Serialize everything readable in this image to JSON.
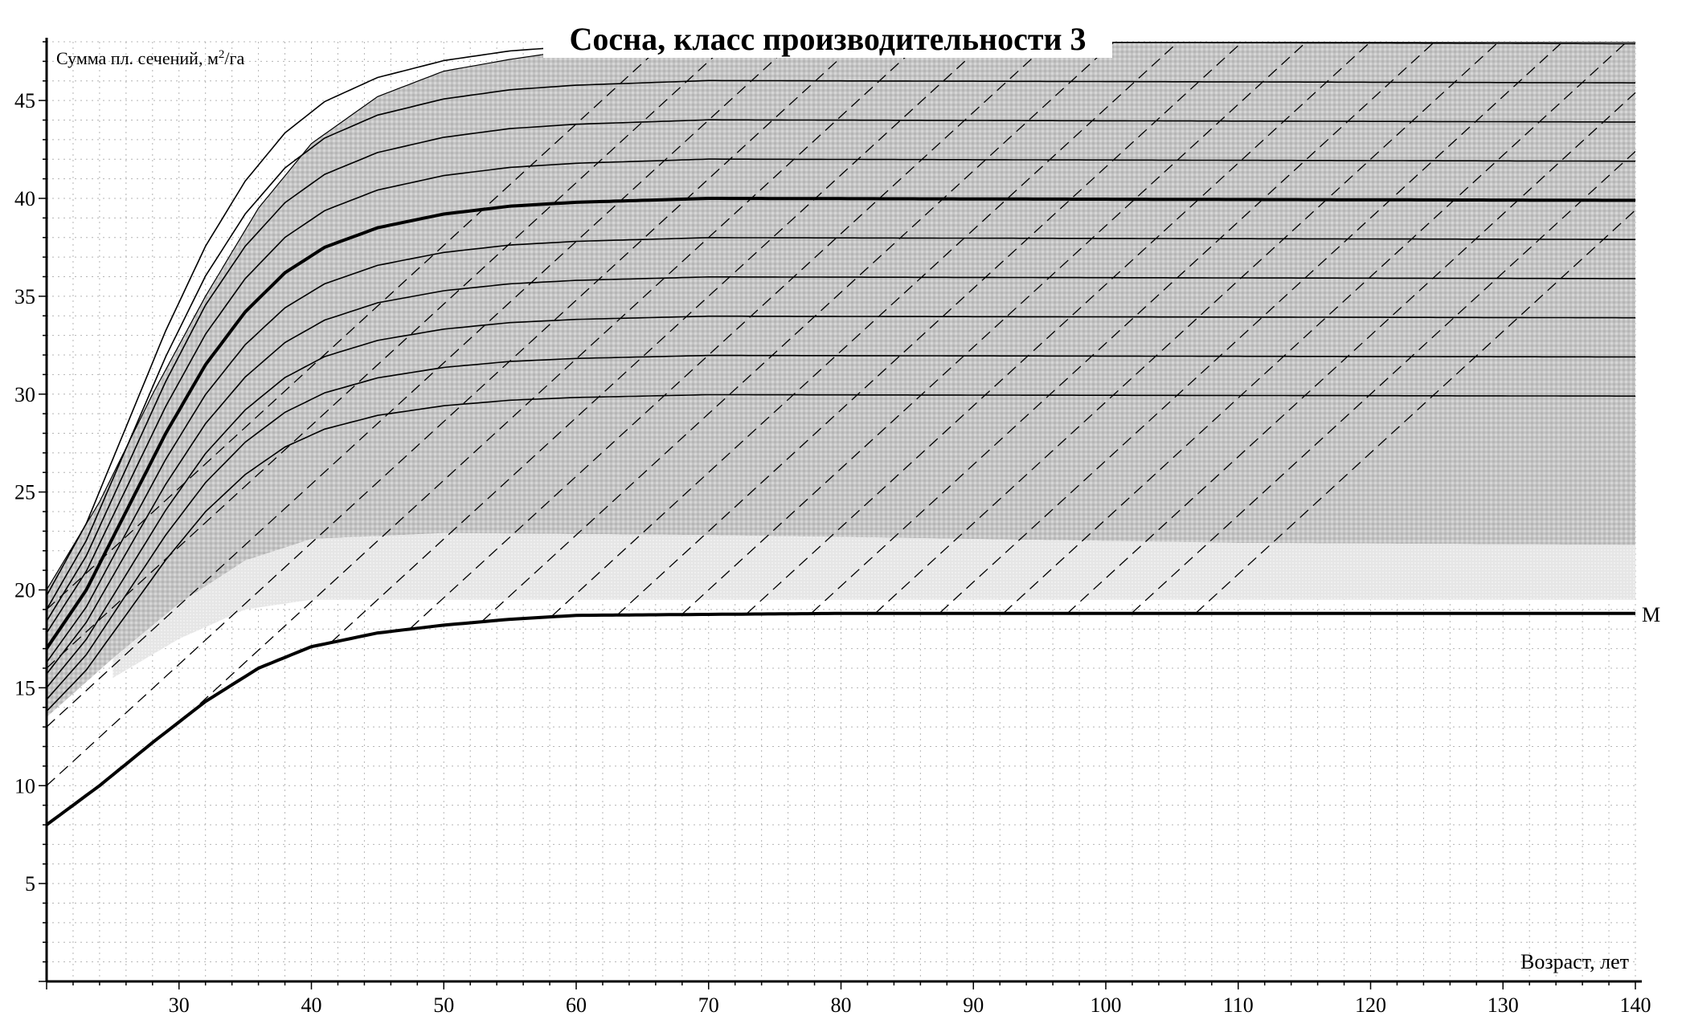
{
  "chart_data": {
    "type": "line",
    "title": "Сосна, класс производительности 3",
    "xlabel": "Возраст, лет",
    "ylabel": "Сумма пл. сечений, м",
    "ylabel_sup": "2",
    "ylabel_suffix": "/га",
    "xlim": [
      20,
      140
    ],
    "ylim": [
      0,
      48
    ],
    "x_ticks": [
      30,
      40,
      50,
      60,
      70,
      80,
      90,
      100,
      110,
      120,
      130,
      140
    ],
    "y_ticks": [
      5,
      10,
      15,
      20,
      25,
      30,
      35,
      40,
      45
    ],
    "grid": "dotted",
    "colors": {
      "band": "#c8c8c8",
      "band_light": "#e4e4e4",
      "curves": "#000000",
      "dashed": "#000000",
      "grid": "#b4b4b4"
    },
    "band": {
      "upper": [
        [
          20,
          20
        ],
        [
          24,
          24.5
        ],
        [
          28,
          30
        ],
        [
          32,
          35
        ],
        [
          36,
          39.5
        ],
        [
          40,
          42.8
        ],
        [
          45,
          45.2
        ],
        [
          50,
          46.5
        ],
        [
          55,
          47.1
        ],
        [
          60,
          47.6
        ],
        [
          70,
          47.9
        ],
        [
          100,
          48
        ],
        [
          140,
          48
        ]
      ],
      "lower": [
        [
          20,
          13.5
        ],
        [
          25,
          16.5
        ],
        [
          30,
          19.3
        ],
        [
          35,
          21.5
        ],
        [
          40,
          22.6
        ],
        [
          50,
          22.9
        ],
        [
          70,
          22.8
        ],
        [
          90,
          22.6
        ],
        [
          110,
          22.4
        ],
        [
          140,
          22.3
        ]
      ]
    },
    "light_zone": {
      "upper": [
        [
          25,
          16.5
        ],
        [
          30,
          19.3
        ],
        [
          35,
          21.5
        ],
        [
          40,
          22.6
        ],
        [
          50,
          22.9
        ],
        [
          70,
          22.8
        ],
        [
          90,
          22.6
        ],
        [
          110,
          22.4
        ],
        [
          140,
          22.3
        ]
      ],
      "lower": [
        [
          25,
          15.5
        ],
        [
          30,
          17.5
        ],
        [
          35,
          19
        ],
        [
          40,
          19.5
        ],
        [
          60,
          19.5
        ],
        [
          100,
          19.5
        ],
        [
          140,
          19.5
        ]
      ]
    },
    "min_curve": {
      "label": "M",
      "points": [
        [
          20,
          8
        ],
        [
          24,
          10
        ],
        [
          28,
          12.2
        ],
        [
          32,
          14.3
        ],
        [
          36,
          16
        ],
        [
          40,
          17.1
        ],
        [
          45,
          17.8
        ],
        [
          50,
          18.2
        ],
        [
          55,
          18.5
        ],
        [
          60,
          18.7
        ],
        [
          80,
          18.8
        ],
        [
          140,
          18.8
        ]
      ]
    },
    "reference_curve": {
      "points": [
        [
          20,
          17
        ],
        [
          23,
          20
        ],
        [
          26,
          24
        ],
        [
          29,
          28
        ],
        [
          32,
          31.5
        ],
        [
          35,
          34.2
        ],
        [
          38,
          36.2
        ],
        [
          41,
          37.5
        ],
        [
          45,
          38.5
        ],
        [
          50,
          39.2
        ],
        [
          55,
          39.6
        ],
        [
          60,
          39.8
        ],
        [
          70,
          40
        ],
        [
          140,
          39.9
        ]
      ]
    },
    "guide_curves": [
      {
        "start": 13.8,
        "asymptote": 29.9
      },
      {
        "start": 14.4,
        "asymptote": 31.9
      },
      {
        "start": 15.0,
        "asymptote": 33.9
      },
      {
        "start": 15.7,
        "asymptote": 35.9
      },
      {
        "start": 16.3,
        "asymptote": 37.9
      },
      {
        "start": 17.8,
        "asymptote": 41.9
      },
      {
        "start": 18.4,
        "asymptote": 43.9
      },
      {
        "start": 19.0,
        "asymptote": 45.9
      },
      {
        "start": 19.7,
        "asymptote": 47.9
      }
    ],
    "thinning_lines": {
      "slope": 0.62,
      "offsets": [
        -70,
        -64,
        -58,
        -52,
        -46,
        -40,
        -34,
        -28,
        -22,
        -16,
        -10,
        -4,
        2,
        8,
        14,
        20,
        26,
        32,
        38,
        44,
        50,
        56,
        62,
        68,
        74,
        80
      ],
      "lower_x_min": 20,
      "lower_y_min_curve": "min_curve"
    }
  }
}
